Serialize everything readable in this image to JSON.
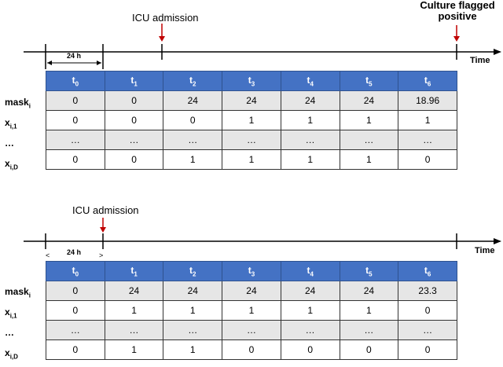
{
  "panels": [
    {
      "annotations": [
        {
          "text": "ICU admission"
        },
        {
          "text": "Culture flagged\npositive"
        }
      ],
      "time_label": "Time",
      "span_label": "24 h",
      "row_labels": [
        {
          "base": "mask",
          "sub": "i"
        },
        {
          "base": "x",
          "sub": "i,1"
        },
        {
          "base": "…",
          "sub": ""
        },
        {
          "base": "x",
          "sub": "i,D"
        }
      ],
      "columns": [
        {
          "base": "t",
          "sub": "0"
        },
        {
          "base": "t",
          "sub": "1"
        },
        {
          "base": "t",
          "sub": "2"
        },
        {
          "base": "t",
          "sub": "3"
        },
        {
          "base": "t",
          "sub": "4"
        },
        {
          "base": "t",
          "sub": "5"
        },
        {
          "base": "t",
          "sub": "6"
        }
      ],
      "rows": [
        [
          "0",
          "0",
          "24",
          "24",
          "24",
          "24",
          "18.96"
        ],
        [
          "0",
          "0",
          "0",
          "1",
          "1",
          "1",
          "1"
        ],
        [
          "…",
          "…",
          "…",
          "…",
          "…",
          "…",
          "…"
        ],
        [
          "0",
          "0",
          "1",
          "1",
          "1",
          "1",
          "0"
        ]
      ]
    },
    {
      "annotations": [
        {
          "text": "ICU admission"
        }
      ],
      "time_label": "Time",
      "span_label": "24 h",
      "row_labels": [
        {
          "base": "mask",
          "sub": "i"
        },
        {
          "base": "x",
          "sub": "i,1"
        },
        {
          "base": "…",
          "sub": ""
        },
        {
          "base": "x",
          "sub": "i,D"
        }
      ],
      "columns": [
        {
          "base": "t",
          "sub": "0"
        },
        {
          "base": "t",
          "sub": "1"
        },
        {
          "base": "t",
          "sub": "2"
        },
        {
          "base": "t",
          "sub": "3"
        },
        {
          "base": "t",
          "sub": "4"
        },
        {
          "base": "t",
          "sub": "5"
        },
        {
          "base": "t",
          "sub": "6"
        }
      ],
      "rows": [
        [
          "0",
          "24",
          "24",
          "24",
          "24",
          "24",
          "23.3"
        ],
        [
          "0",
          "1",
          "1",
          "1",
          "1",
          "1",
          "0"
        ],
        [
          "…",
          "…",
          "…",
          "…",
          "…",
          "…",
          "…"
        ],
        [
          "0",
          "1",
          "1",
          "0",
          "0",
          "0",
          "0"
        ]
      ]
    }
  ],
  "colors": {
    "header_fill": "#4472c4",
    "shaded_row": "#e6e6e6",
    "arrow": "#c00000"
  }
}
